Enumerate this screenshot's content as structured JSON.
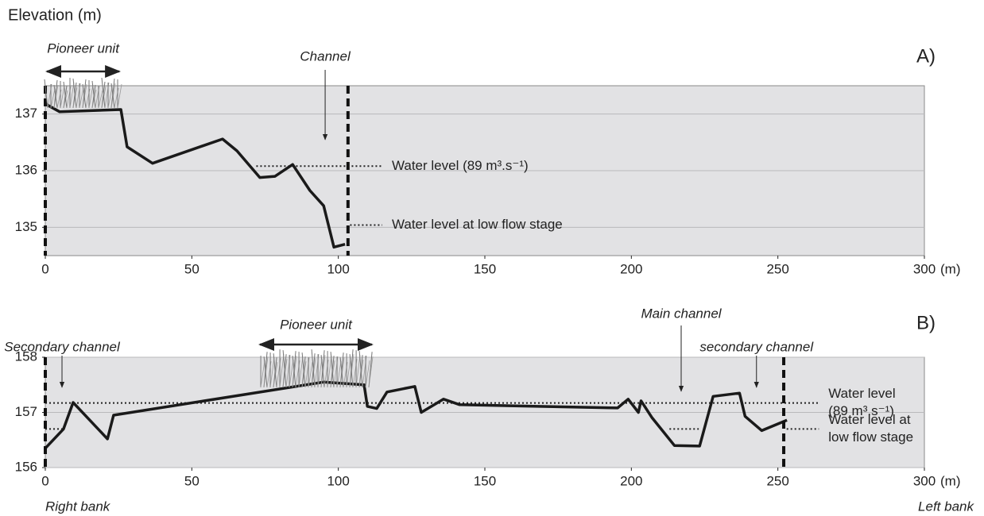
{
  "title": "Elevation (m)",
  "chart_data": [
    {
      "type": "line",
      "panel_label": "A)",
      "xlabel": "(m)",
      "x": [
        0,
        4.9,
        25.8,
        27.9,
        36.6,
        60.5,
        65.4,
        73.2,
        78.4,
        84.4,
        90.3,
        95,
        98.5,
        102.3
      ],
      "values": [
        137.18,
        137.04,
        137.08,
        136.42,
        136.13,
        136.56,
        136.35,
        135.88,
        135.9,
        136.11,
        135.65,
        135.38,
        134.65,
        134.7
      ],
      "color": "#1a1a1a",
      "xlim": [
        0,
        300
      ],
      "xticks": [
        0,
        50,
        100,
        150,
        200,
        250,
        300
      ],
      "ylim": [
        134.5,
        137.5
      ],
      "yticks": [
        135,
        136,
        137
      ],
      "grid": true,
      "banks": [
        0,
        103.3
      ],
      "reference_lines": [
        {
          "label": [
            "Water level  (89 m³.s⁻¹)"
          ],
          "value": 136.08,
          "segments": [
            [
              72,
              115
            ]
          ]
        },
        {
          "label": [
            "Water level at low flow stage"
          ],
          "value": 135.04,
          "segments": [
            [
              104,
              115
            ]
          ]
        }
      ],
      "annotations": [
        {
          "text": "Pioneer unit",
          "x": [
            0,
            25.8
          ]
        },
        {
          "text": "Channel",
          "x": 95.5
        }
      ]
    },
    {
      "type": "line",
      "panel_label": "B)",
      "xlabel": "(m)",
      "x": [
        0,
        6.2,
        9.5,
        21.2,
        23.3,
        94.9,
        108.8,
        109.9,
        113.1,
        116.6,
        126.1,
        128.3,
        135.9,
        141.4,
        195.3,
        198.9,
        202.4,
        203.3,
        207.1,
        214.7,
        223.3,
        227.9,
        236.9,
        238.8,
        244.5,
        253.1
      ],
      "values": [
        156.35,
        156.7,
        157.18,
        156.52,
        156.95,
        157.55,
        157.5,
        157.11,
        157.07,
        157.37,
        157.47,
        157.0,
        157.24,
        157.14,
        157.08,
        157.24,
        157.0,
        157.21,
        156.9,
        156.4,
        156.39,
        157.29,
        157.35,
        156.93,
        156.67,
        156.86
      ],
      "color": "#1a1a1a",
      "xlim": [
        0,
        300
      ],
      "xticks": [
        0,
        50,
        100,
        150,
        200,
        250,
        300
      ],
      "ylim": [
        156,
        158
      ],
      "yticks": [
        156,
        157,
        158
      ],
      "grid": true,
      "banks": [
        0,
        252
      ],
      "reference_lines": [
        {
          "label": [
            "Water level",
            "(89 m³.s⁻¹)"
          ],
          "value": 157.17,
          "segments": [
            [
              0,
              264
            ]
          ]
        },
        {
          "label": [
            "Water level at",
            "low flow stage"
          ],
          "value": 156.7,
          "segments": [
            [
              0,
              6
            ],
            [
              213,
              223
            ],
            [
              253,
              264
            ]
          ]
        }
      ],
      "annotations": [
        {
          "text": "Secondary channel",
          "x": 5.7
        },
        {
          "text": "Pioneer unit",
          "x": [
            72.7,
            112
          ]
        },
        {
          "text": "Main channel",
          "x": 217
        },
        {
          "text": "secondary channel",
          "x": 242.7
        }
      ],
      "bank_labels": [
        "Right bank",
        "Left bank"
      ]
    }
  ]
}
